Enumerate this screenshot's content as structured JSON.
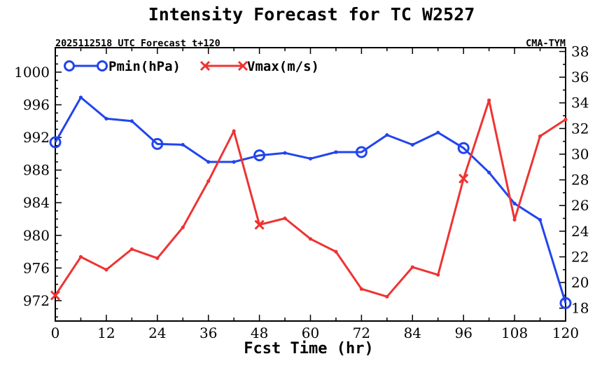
{
  "chart_data": {
    "type": "line",
    "title": "Intensity Forecast for TC W2527",
    "subtitle_left": "2025112518 UTC Forecast t+120",
    "subtitle_right": "CMA-TYM",
    "xlabel": "Fcst Time (hr)",
    "xlim": [
      0,
      120
    ],
    "xticks": [
      0,
      12,
      24,
      36,
      48,
      60,
      72,
      84,
      96,
      108,
      120
    ],
    "x": [
      0,
      6,
      12,
      18,
      24,
      30,
      36,
      42,
      48,
      54,
      60,
      66,
      72,
      78,
      84,
      90,
      96,
      102,
      108,
      114,
      120
    ],
    "y_left": {
      "label": "Pmin(hPa)",
      "ylim": [
        969.5,
        1003.0
      ],
      "ticks": [
        972,
        976,
        980,
        984,
        988,
        992,
        996,
        1000
      ]
    },
    "y_right": {
      "label": "Vmax(m/s)",
      "ylim": [
        17.0,
        38.3
      ],
      "ticks": [
        18,
        20,
        22,
        24,
        26,
        28,
        30,
        32,
        34,
        36,
        38
      ]
    },
    "series": [
      {
        "name": "Pmin(hPa)",
        "axis": "left",
        "color": "#2244ee",
        "marker": "circle",
        "marker_every": 4,
        "values": [
          991.4,
          996.9,
          994.3,
          994.0,
          991.2,
          991.1,
          989.0,
          989.0,
          989.8,
          990.1,
          989.4,
          990.2,
          990.2,
          992.3,
          991.1,
          992.6,
          990.7,
          987.7,
          983.9,
          981.9,
          971.7
        ]
      },
      {
        "name": "Vmax(m/s)",
        "axis": "right",
        "color": "#ee3333",
        "marker": "x",
        "marker_every": 8,
        "values": [
          19.0,
          22.0,
          21.0,
          22.6,
          21.9,
          24.3,
          27.9,
          31.8,
          24.5,
          25.0,
          23.4,
          22.4,
          19.5,
          18.9,
          21.2,
          20.6,
          28.1,
          34.2,
          24.9,
          31.4,
          32.7
        ]
      }
    ]
  }
}
